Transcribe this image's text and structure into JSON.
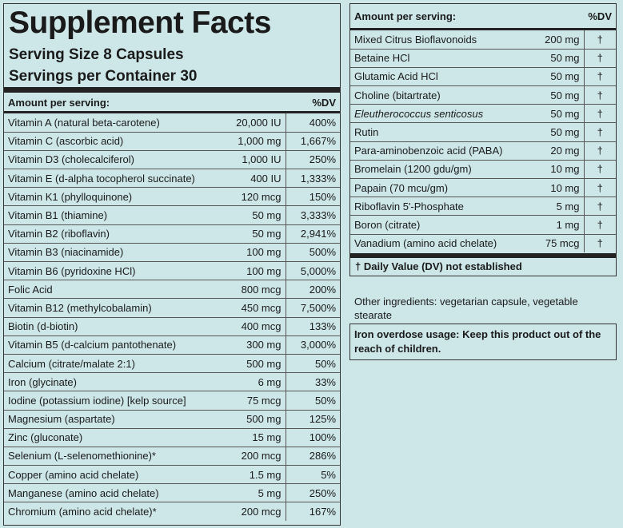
{
  "left": {
    "title": "Supplement Facts",
    "serving_size": "Serving Size  8 Capsules",
    "servings_per_container": "Servings per Container  30",
    "header": [
      "Amount per serving:",
      "%DV"
    ],
    "rows": [
      [
        "Vitamin A (natural beta-carotene)",
        "20,000 IU",
        "400%"
      ],
      [
        "Vitamin C (ascorbic acid)",
        "1,000 mg",
        "1,667%"
      ],
      [
        "Vitamin D3 (cholecalciferol)",
        "1,000 IU",
        "250%"
      ],
      [
        "Vitamin E (d-alpha tocopherol succinate)",
        "400 IU",
        "1,333%"
      ],
      [
        "Vitamin K1 (phylloquinone)",
        "120 mcg",
        "150%"
      ],
      [
        "Vitamin B1 (thiamine)",
        "50 mg",
        "3,333%"
      ],
      [
        "Vitamin B2 (riboflavin)",
        "50 mg",
        "2,941%"
      ],
      [
        "Vitamin B3 (niacinamide)",
        "100 mg",
        "500%"
      ],
      [
        "Vitamin B6 (pyridoxine HCl)",
        "100 mg",
        "5,000%"
      ],
      [
        "Folic Acid",
        "800 mcg",
        "200%"
      ],
      [
        "Vitamin B12 (methylcobalamin)",
        "450 mcg",
        "7,500%"
      ],
      [
        "Biotin (d-biotin)",
        "400 mcg",
        "133%"
      ],
      [
        "Vitamin B5 (d-calcium pantothenate)",
        "300 mg",
        "3,000%"
      ],
      [
        "Calcium (citrate/malate 2:1)",
        "500 mg",
        "50%"
      ],
      [
        "Iron (glycinate)",
        "6 mg",
        "33%"
      ],
      [
        "Iodine (potassium iodine) [kelp source]",
        "75 mcg",
        "50%"
      ],
      [
        "Magnesium (aspartate)",
        "500 mg",
        "125%"
      ],
      [
        "Zinc (gluconate)",
        "15 mg",
        "100%"
      ],
      [
        "Selenium (L-selenomethionine)*",
        "200 mcg",
        "286%"
      ],
      [
        "Copper (amino acid chelate)",
        "1.5 mg",
        "5%"
      ],
      [
        "Manganese (amino acid chelate)",
        "5 mg",
        "250%"
      ],
      [
        "Chromium (amino acid chelate)*",
        "200 mcg",
        "167%"
      ]
    ]
  },
  "right": {
    "header": [
      "Amount per serving:",
      "%DV"
    ],
    "rows": [
      [
        "Mixed Citrus Bioflavonoids",
        "200 mg",
        "†"
      ],
      [
        "Betaine HCl",
        "50 mg",
        "†"
      ],
      [
        "Glutamic Acid HCl",
        "50 mg",
        "†"
      ],
      [
        "Choline (bitartrate)",
        "50 mg",
        "†"
      ],
      [
        "Eleutherococcus senticosus",
        "50 mg",
        "†"
      ],
      [
        "Rutin",
        "50 mg",
        "†"
      ],
      [
        "Para-aminobenzoic acid (PABA)",
        "20 mg",
        "†"
      ],
      [
        "Bromelain (1200 gdu/gm)",
        "10 mg",
        "†"
      ],
      [
        "Papain (70 mcu/gm)",
        "10 mg",
        "†"
      ],
      [
        "Riboflavin 5'-Phosphate",
        "5 mg",
        "†"
      ],
      [
        "Boron (citrate)",
        "1 mg",
        "†"
      ],
      [
        "Vanadium (amino acid chelate)",
        "75 mcg",
        "†"
      ]
    ],
    "footnote": "†  Daily Value (DV) not established"
  },
  "other_ingredients": "Other ingredients: vegetarian capsule, vegetable stearate",
  "warning": "Iron overdose usage: Keep this product out of the reach of children."
}
